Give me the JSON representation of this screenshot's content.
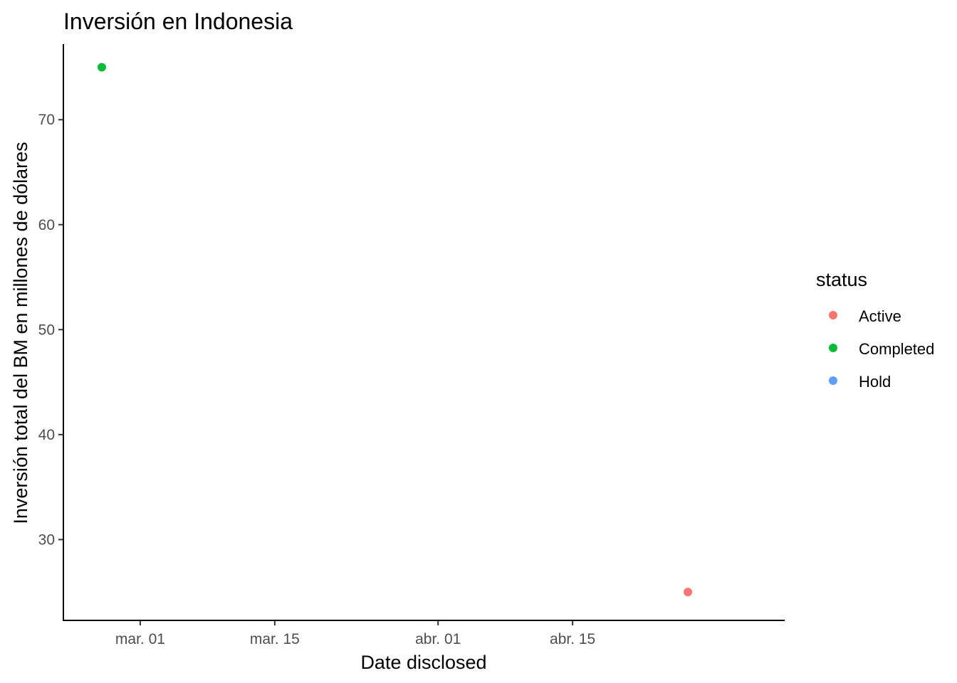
{
  "chart_data": {
    "type": "scatter",
    "title": "Inversión en Indonesia",
    "xlabel": "Date disclosed",
    "ylabel": "Inversión total del BM en millones de dólares",
    "x_ticks": [
      {
        "date": "2019-03-01",
        "label": "mar. 01"
      },
      {
        "date": "2019-03-15",
        "label": "mar. 15"
      },
      {
        "date": "2019-04-01",
        "label": "abr. 01"
      },
      {
        "date": "2019-04-15",
        "label": "abr. 15"
      }
    ],
    "y_ticks": [
      30,
      40,
      50,
      60,
      70
    ],
    "xlim": [
      "2019-02-21",
      "2019-05-07"
    ],
    "ylim": [
      22.3,
      77.2
    ],
    "grid": false,
    "legend": {
      "title": "status",
      "position": "right",
      "items": [
        {
          "label": "Active",
          "color": "#F8766D"
        },
        {
          "label": "Completed",
          "color": "#00BA38"
        },
        {
          "label": "Hold",
          "color": "#619CFF"
        }
      ]
    },
    "points": [
      {
        "x": "2019-02-25",
        "y": 75,
        "status": "Completed",
        "color": "#00BA38"
      },
      {
        "x": "2019-04-27",
        "y": 25,
        "status": "Active",
        "color": "#F8766D"
      }
    ]
  }
}
